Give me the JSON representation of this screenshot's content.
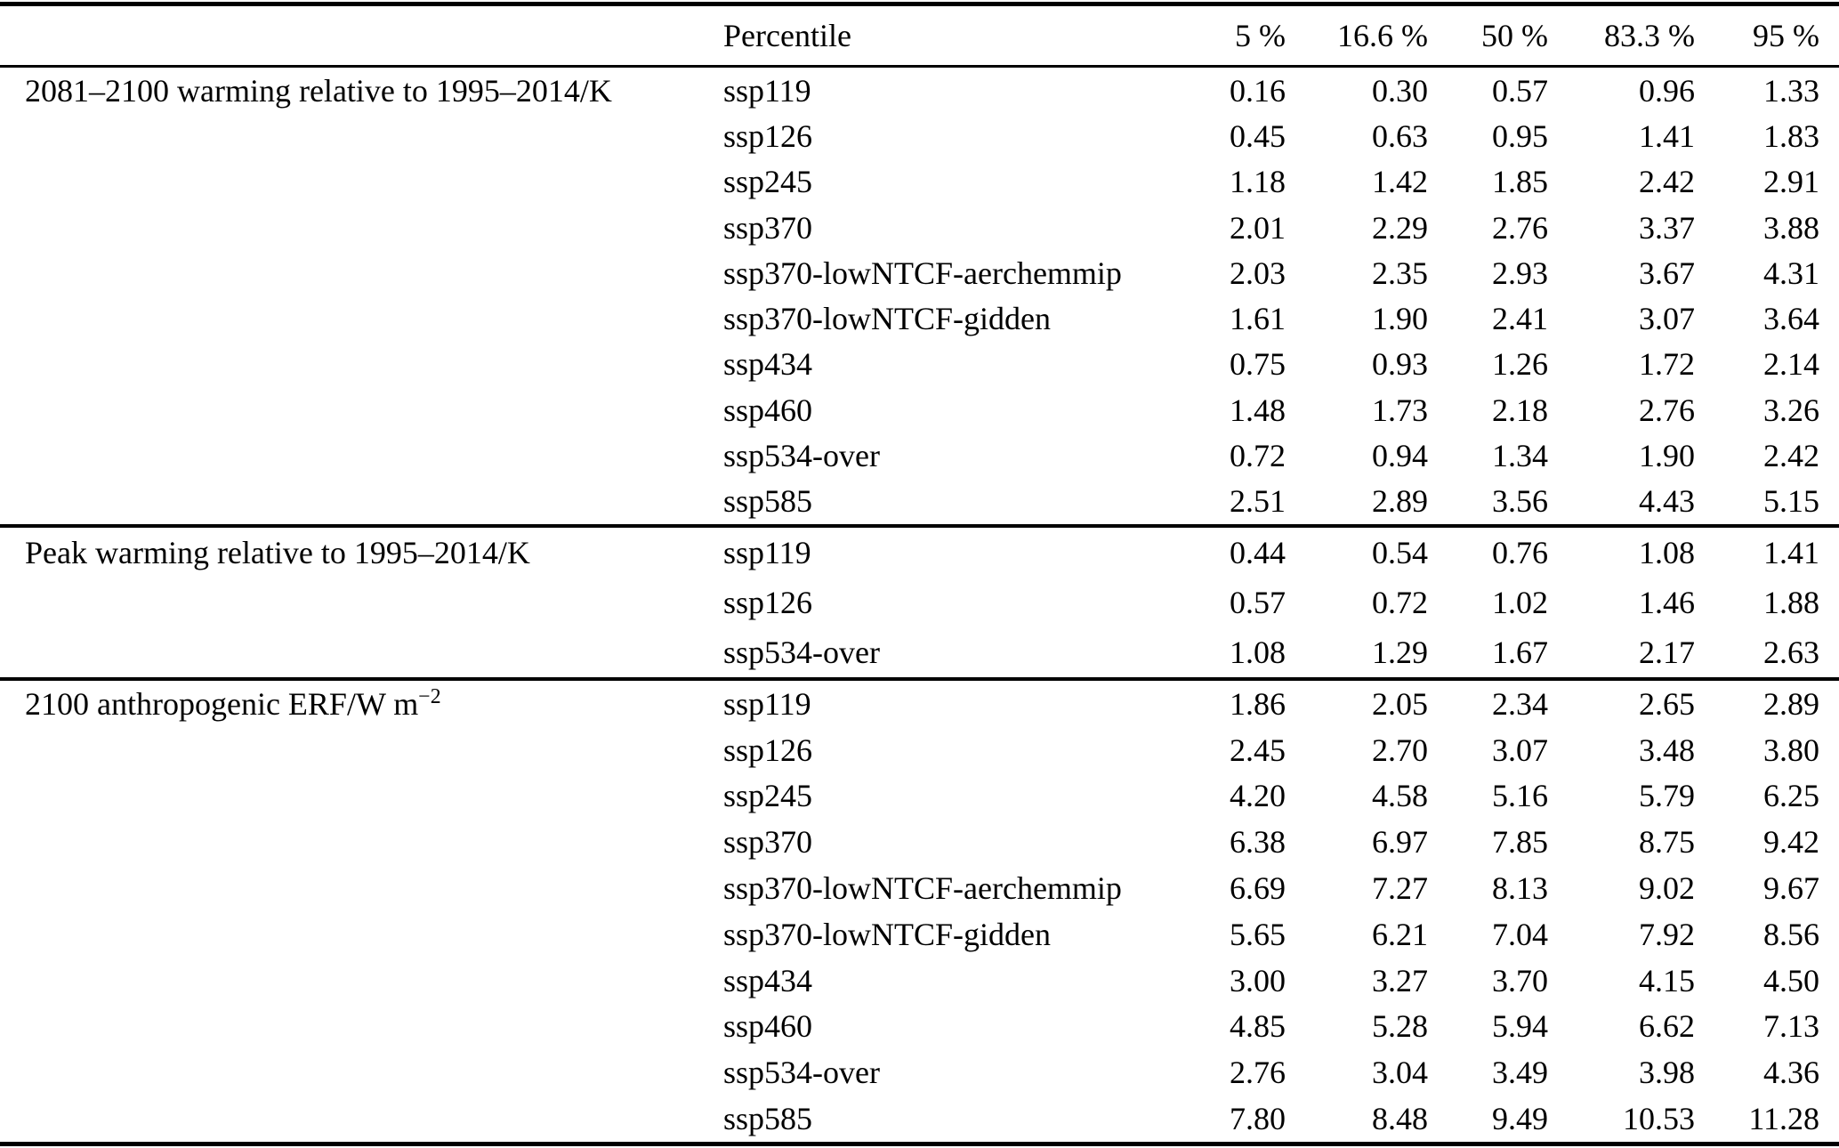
{
  "table": {
    "header": {
      "percentile_label": "Percentile",
      "columns": [
        "5 %",
        "16.6 %",
        "50 %",
        "83.3 %",
        "95 %"
      ]
    },
    "sections": [
      {
        "label": "2081–2100 warming relative to 1995–2014/K",
        "label_sup": "",
        "rows": [
          {
            "scenario": "ssp119",
            "values": [
              "0.16",
              "0.30",
              "0.57",
              "0.96",
              "1.33"
            ]
          },
          {
            "scenario": "ssp126",
            "values": [
              "0.45",
              "0.63",
              "0.95",
              "1.41",
              "1.83"
            ]
          },
          {
            "scenario": "ssp245",
            "values": [
              "1.18",
              "1.42",
              "1.85",
              "2.42",
              "2.91"
            ]
          },
          {
            "scenario": "ssp370",
            "values": [
              "2.01",
              "2.29",
              "2.76",
              "3.37",
              "3.88"
            ]
          },
          {
            "scenario": "ssp370-lowNTCF-aerchemmip",
            "values": [
              "2.03",
              "2.35",
              "2.93",
              "3.67",
              "4.31"
            ]
          },
          {
            "scenario": "ssp370-lowNTCF-gidden",
            "values": [
              "1.61",
              "1.90",
              "2.41",
              "3.07",
              "3.64"
            ]
          },
          {
            "scenario": "ssp434",
            "values": [
              "0.75",
              "0.93",
              "1.26",
              "1.72",
              "2.14"
            ]
          },
          {
            "scenario": "ssp460",
            "values": [
              "1.48",
              "1.73",
              "2.18",
              "2.76",
              "3.26"
            ]
          },
          {
            "scenario": "ssp534-over",
            "values": [
              "0.72",
              "0.94",
              "1.34",
              "1.90",
              "2.42"
            ]
          },
          {
            "scenario": "ssp585",
            "values": [
              "2.51",
              "2.89",
              "3.56",
              "4.43",
              "5.15"
            ]
          }
        ]
      },
      {
        "label": "Peak warming relative to 1995–2014/K",
        "label_sup": "",
        "rows": [
          {
            "scenario": "ssp119",
            "values": [
              "0.44",
              "0.54",
              "0.76",
              "1.08",
              "1.41"
            ]
          },
          {
            "scenario": "ssp126",
            "values": [
              "0.57",
              "0.72",
              "1.02",
              "1.46",
              "1.88"
            ]
          },
          {
            "scenario": "ssp534-over",
            "values": [
              "1.08",
              "1.29",
              "1.67",
              "2.17",
              "2.63"
            ]
          }
        ]
      },
      {
        "label": "2100 anthropogenic ERF/W m",
        "label_sup": "−2",
        "rows": [
          {
            "scenario": "ssp119",
            "values": [
              "1.86",
              "2.05",
              "2.34",
              "2.65",
              "2.89"
            ]
          },
          {
            "scenario": "ssp126",
            "values": [
              "2.45",
              "2.70",
              "3.07",
              "3.48",
              "3.80"
            ]
          },
          {
            "scenario": "ssp245",
            "values": [
              "4.20",
              "4.58",
              "5.16",
              "5.79",
              "6.25"
            ]
          },
          {
            "scenario": "ssp370",
            "values": [
              "6.38",
              "6.97",
              "7.85",
              "8.75",
              "9.42"
            ]
          },
          {
            "scenario": "ssp370-lowNTCF-aerchemmip",
            "values": [
              "6.69",
              "7.27",
              "8.13",
              "9.02",
              "9.67"
            ]
          },
          {
            "scenario": "ssp370-lowNTCF-gidden",
            "values": [
              "5.65",
              "6.21",
              "7.04",
              "7.92",
              "8.56"
            ]
          },
          {
            "scenario": "ssp434",
            "values": [
              "3.00",
              "3.27",
              "3.70",
              "4.15",
              "4.50"
            ]
          },
          {
            "scenario": "ssp460",
            "values": [
              "4.85",
              "5.28",
              "5.94",
              "6.62",
              "7.13"
            ]
          },
          {
            "scenario": "ssp534-over",
            "values": [
              "2.76",
              "3.04",
              "3.49",
              "3.98",
              "4.36"
            ]
          },
          {
            "scenario": "ssp585",
            "values": [
              "7.80",
              "8.48",
              "9.49",
              "10.53",
              "11.28"
            ]
          }
        ]
      }
    ]
  }
}
